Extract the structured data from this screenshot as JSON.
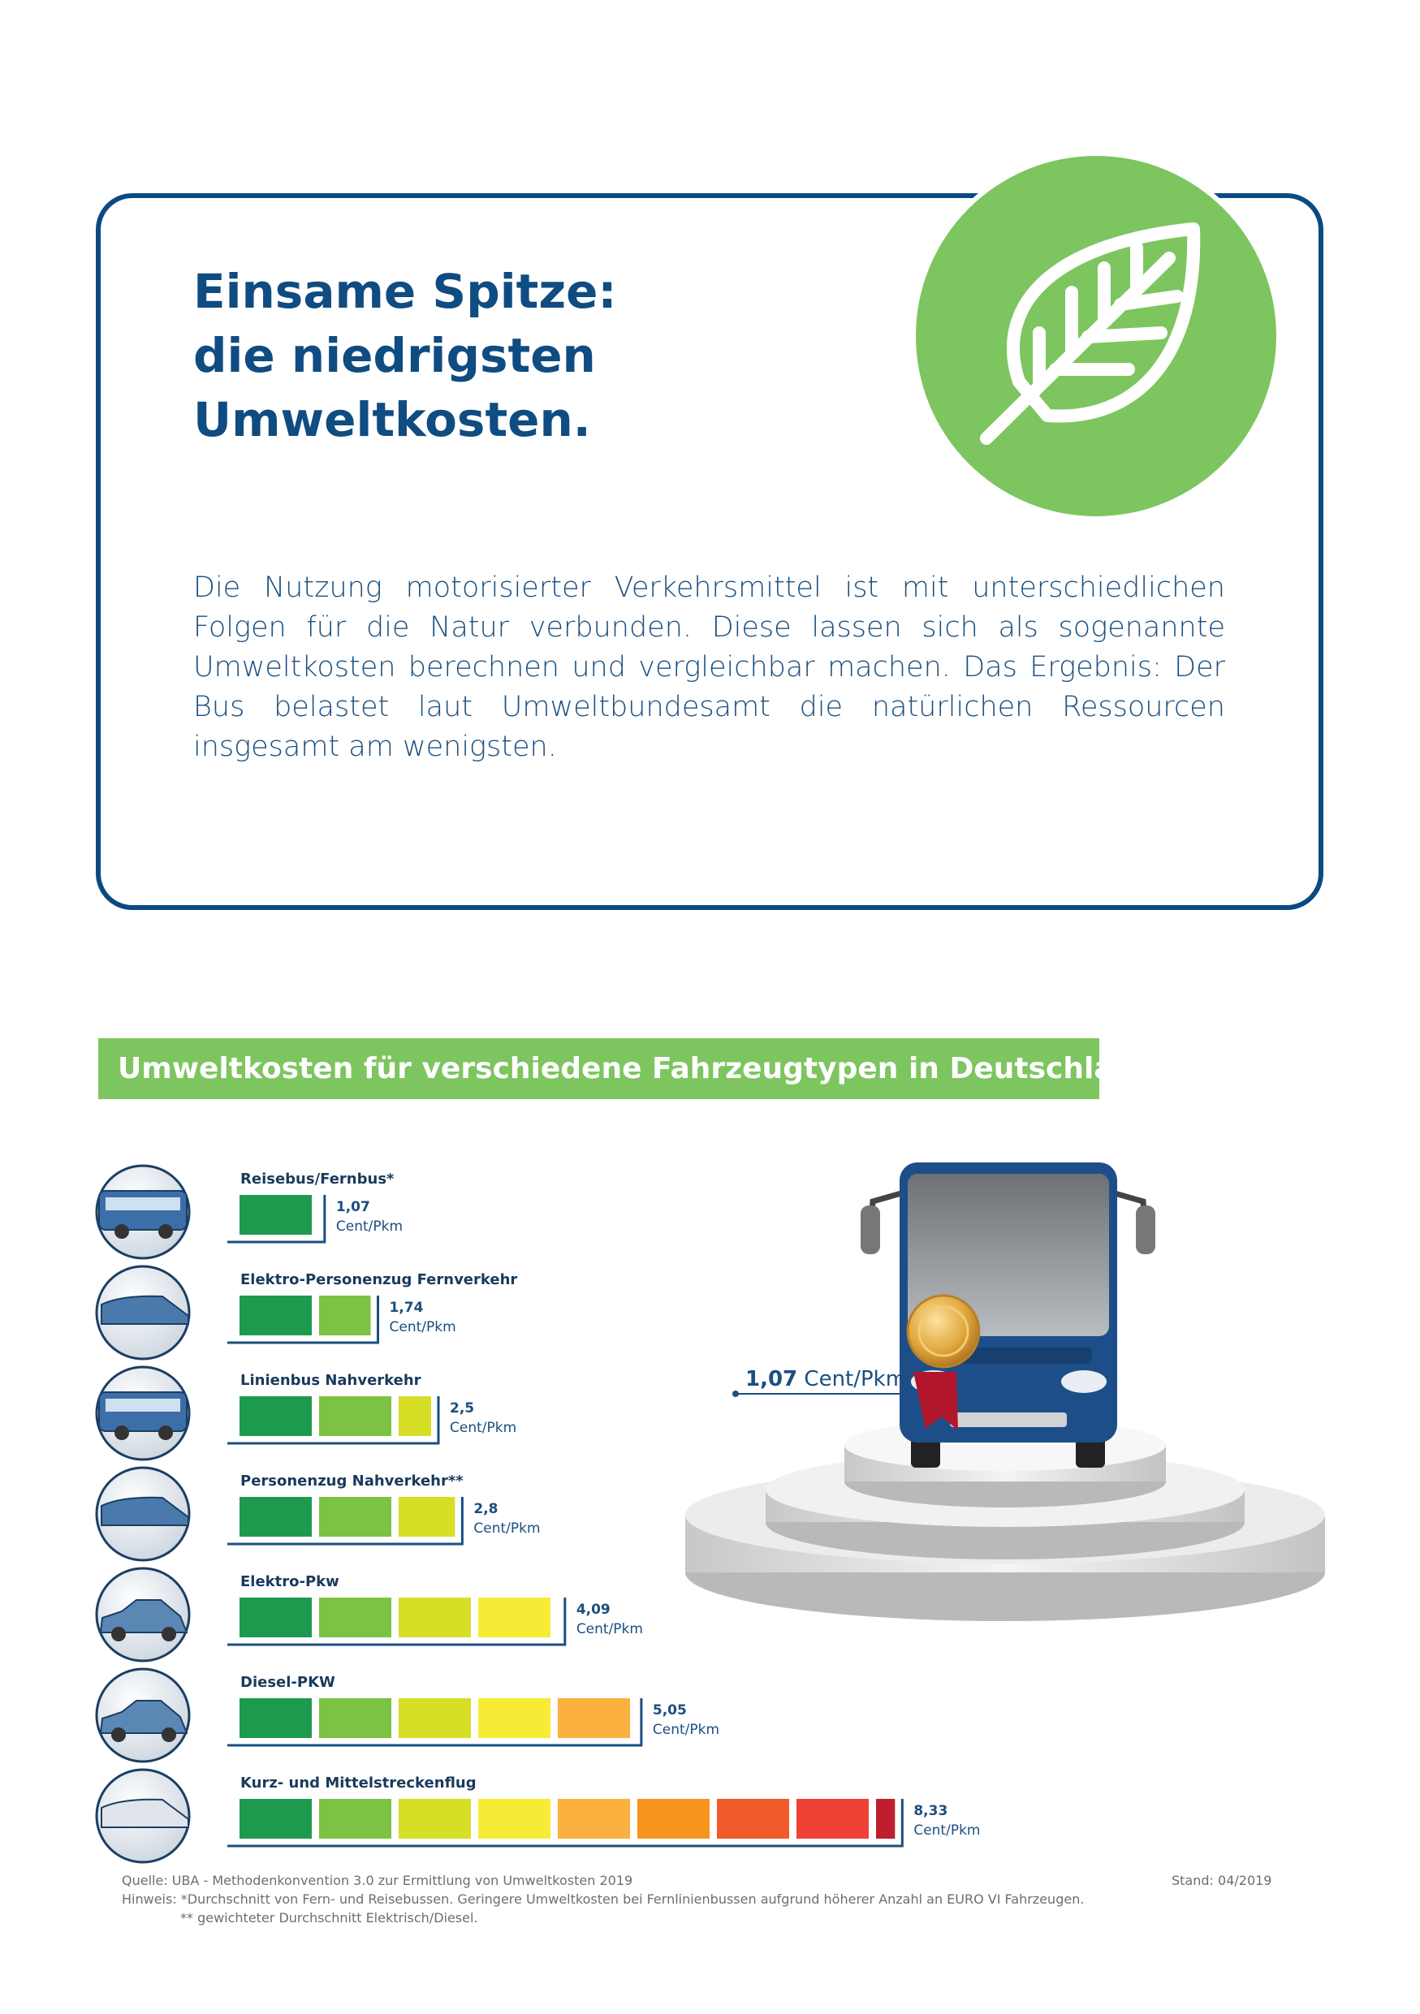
{
  "title_box": {
    "title_lines": [
      "Einsame Spitze:",
      "die niedrigsten",
      "Umweltkosten."
    ],
    "text": "Die Nutzung motorisierter Verkehrsmittel ist mit unterschiedlichen Folgen für die Natur verbunden. Diese lassen sich als sogenannte Umweltkosten berechnen und vergleichbar machen. Das Ergebnis: Der Bus belastet laut Umweltbundesamt die natürlichen Ressourcen insgesamt am wenigsten."
  },
  "chart_data": {
    "type": "bar",
    "orientation": "horizontal",
    "title": "Umweltkosten für verschiedene Fahrzeugtypen in Deutschland",
    "categories": [
      "Reisebus/Fernbus*",
      "Elektro-Personenzug Fernverkehr",
      "Linienbus Nahverkehr",
      "Personenzug Nahverkehr**",
      "Elektro-Pkw",
      "Diesel-PKW",
      "Kurz- und Mittelstreckenflug"
    ],
    "values": [
      1.07,
      1.74,
      2.5,
      2.8,
      4.09,
      5.05,
      8.33
    ],
    "value_labels": [
      "1,07",
      "1,74",
      "2,5",
      "2,8",
      "4,09",
      "5,05",
      "8,33"
    ],
    "unit": "Cent/Pkm",
    "colors": [
      "#1e9a4f",
      "#7cc243",
      "#d6df26",
      "#f6ec36",
      "#fbb040",
      "#f7941d",
      "#f15a29",
      "#ef4136",
      "#be1e2d"
    ]
  },
  "footer": {
    "source": "Quelle: UBA - Methodenkonvention 3.0 zur Ermittlung von Umweltkosten 2019",
    "notes": [
      "Hinweis: *Durchschnitt von Fern- und Reisebussen. Geringere Umweltkosten bei Fernlinienbussen aufgrund höherer Anzahl an EURO VI Fahrzeugen.",
      "** gewichteter Durchschnitt Elektrisch/Diesel."
    ],
    "stand": "Stand: 04/2019"
  }
}
